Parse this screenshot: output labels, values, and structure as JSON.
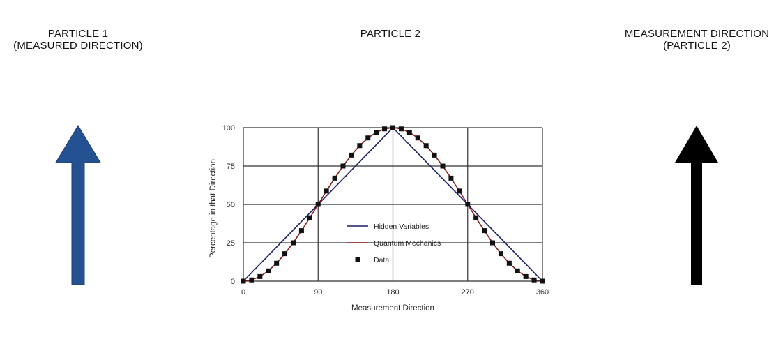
{
  "headings": {
    "left": [
      "PARTICLE 1",
      "(MEASURED DIRECTION)"
    ],
    "center": [
      "PARTICLE 2"
    ],
    "right": [
      "MEASUREMENT DIRECTION",
      "(PARTICLE 2)"
    ]
  },
  "colors": {
    "left_arrow": "#245191",
    "right_arrow": "#000000",
    "hidden_variables": "#1c1f66",
    "quantum_mechanics": "#8a1c1c",
    "data": "#111111",
    "grid": "#333333"
  },
  "icons": {
    "left_arrow": "up-arrow-icon",
    "right_arrow": "up-arrow-icon"
  },
  "chart_data": {
    "type": "line",
    "xlabel": "Measurement Direction",
    "ylabel": "Percentage in that Direction",
    "xlim": [
      0,
      360
    ],
    "ylim": [
      0,
      100
    ],
    "xticks": [
      0,
      90,
      180,
      270,
      360
    ],
    "yticks": [
      0,
      25,
      50,
      75,
      100
    ],
    "grid": true,
    "legend_position": "center",
    "series": [
      {
        "name": "Hidden Variables",
        "kind": "line",
        "x": [
          0,
          180,
          360
        ],
        "y": [
          0,
          100,
          0
        ]
      },
      {
        "name": "Quantum Mechanics",
        "kind": "line",
        "x": [
          0,
          10,
          20,
          30,
          40,
          50,
          60,
          70,
          80,
          90,
          100,
          110,
          120,
          130,
          140,
          150,
          160,
          170,
          180,
          190,
          200,
          210,
          220,
          230,
          240,
          250,
          260,
          270,
          280,
          290,
          300,
          310,
          320,
          330,
          340,
          350,
          360
        ],
        "y": [
          0,
          0.8,
          3,
          6.7,
          11.7,
          17.9,
          25,
          32.9,
          41.3,
          50,
          58.7,
          67.1,
          75,
          82.1,
          88.3,
          93.3,
          97,
          99.2,
          100,
          99.2,
          97,
          93.3,
          88.3,
          82.1,
          75,
          67.1,
          58.7,
          50,
          41.3,
          32.9,
          25,
          17.9,
          11.7,
          6.7,
          3,
          0.8,
          0
        ]
      },
      {
        "name": "Data",
        "kind": "scatter",
        "x": [
          0,
          10,
          20,
          30,
          40,
          50,
          60,
          70,
          80,
          90,
          100,
          110,
          120,
          130,
          140,
          150,
          160,
          170,
          180,
          190,
          200,
          210,
          220,
          230,
          240,
          250,
          260,
          270,
          280,
          290,
          300,
          310,
          320,
          330,
          340,
          350,
          360
        ],
        "y": [
          0,
          0.8,
          3,
          6.7,
          11.7,
          17.9,
          25,
          32.9,
          41.3,
          50,
          58.7,
          67.1,
          75,
          82.1,
          88.3,
          93.3,
          97,
          99.2,
          100,
          99.2,
          97,
          93.3,
          88.3,
          82.1,
          75,
          67.1,
          58.7,
          50,
          41.3,
          32.9,
          25,
          17.9,
          11.7,
          6.7,
          3,
          0.8,
          0
        ]
      }
    ]
  }
}
